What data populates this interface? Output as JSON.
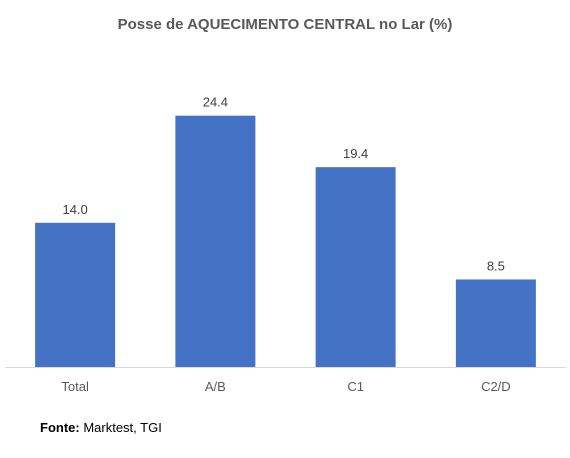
{
  "chart_data": {
    "type": "bar",
    "title": "Posse de AQUECIMENTO CENTRAL no Lar (%)",
    "categories": [
      "Total",
      "A/B",
      "C1",
      "C2/D"
    ],
    "values": [
      14.0,
      24.4,
      19.4,
      8.5
    ],
    "value_labels": [
      "14.0",
      "24.4",
      "19.4",
      "8.5"
    ],
    "xlabel": "",
    "ylabel": "",
    "ylim": [
      0,
      30
    ],
    "grid": false,
    "legend": "none",
    "bar_color": "#4472C4"
  },
  "footer": {
    "source_label": "Fonte:",
    "source_text": " Marktest, TGI"
  }
}
